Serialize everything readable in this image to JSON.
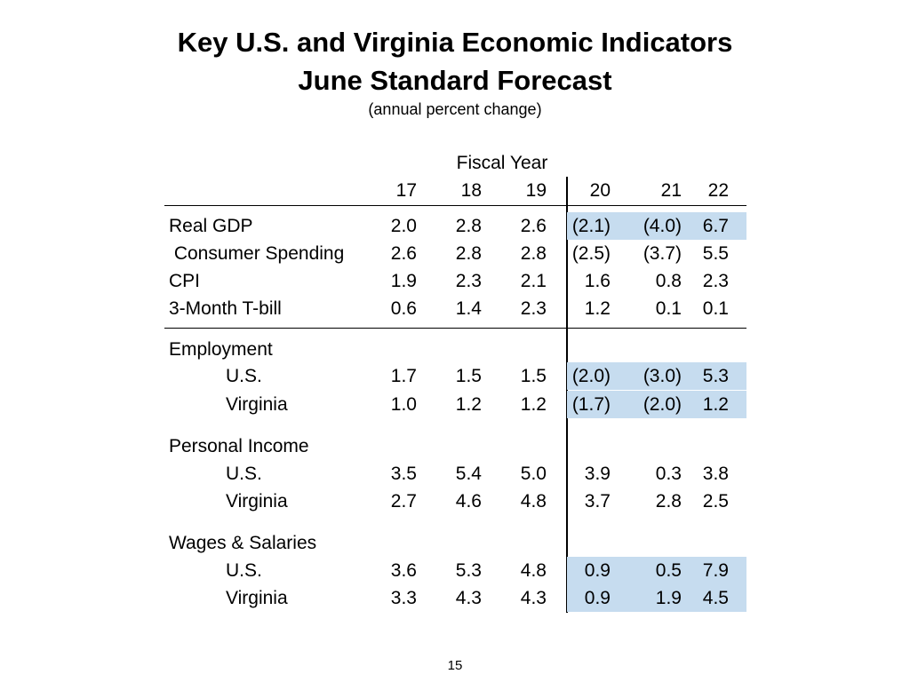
{
  "title_line1": "Key U.S. and Virginia Economic Indicators",
  "title_line2": "June Standard Forecast",
  "subtitle": "(annual percent change)",
  "fiscal_year_label": "Fiscal Year",
  "years": [
    "17",
    "18",
    "19",
    "20",
    "21",
    "22"
  ],
  "rows": [
    {
      "label": "Real GDP",
      "values": [
        "2.0",
        "2.8",
        "2.6",
        "(2.1)",
        "(4.0)",
        "6.7"
      ],
      "shaded": true
    },
    {
      "label": " Consumer Spending",
      "values": [
        "2.6",
        "2.8",
        "2.8",
        "(2.5)",
        "(3.7)",
        "5.5"
      ],
      "shaded": false
    },
    {
      "label": "CPI",
      "values": [
        "1.9",
        "2.3",
        "2.1",
        "1.6",
        "0.8",
        "2.3"
      ],
      "shaded": false
    },
    {
      "label": "3-Month T-bill",
      "values": [
        "0.6",
        "1.4",
        "2.3",
        "1.2",
        "0.1",
        "0.1"
      ],
      "shaded": false
    },
    {
      "label": "Employment",
      "values": [],
      "shaded": false
    },
    {
      "label": "U.S.",
      "values": [
        "1.7",
        "1.5",
        "1.5",
        "(2.0)",
        "(3.0)",
        "5.3"
      ],
      "shaded": true
    },
    {
      "label": "Virginia",
      "values": [
        "1.0",
        "1.2",
        "1.2",
        "(1.7)",
        "(2.0)",
        "1.2"
      ],
      "shaded": true
    },
    {
      "label": "Personal Income",
      "values": [],
      "shaded": false
    },
    {
      "label": "U.S.",
      "values": [
        "3.5",
        "5.4",
        "5.0",
        "3.9",
        "0.3",
        "3.8"
      ],
      "shaded": false
    },
    {
      "label": "Virginia",
      "values": [
        "2.7",
        "4.6",
        "4.8",
        "3.7",
        "2.8",
        "2.5"
      ],
      "shaded": false
    },
    {
      "label": "Wages & Salaries",
      "values": [],
      "shaded": false
    },
    {
      "label": "U.S.",
      "values": [
        "3.6",
        "5.3",
        "4.8",
        "0.9",
        "0.5",
        "7.9"
      ],
      "shaded": true
    },
    {
      "label": "Virginia",
      "values": [
        "3.3",
        "4.3",
        "4.3",
        "0.9",
        "1.9",
        "4.5"
      ],
      "shaded": true
    }
  ],
  "shade_color": "#c6dcef",
  "page_number": "15"
}
